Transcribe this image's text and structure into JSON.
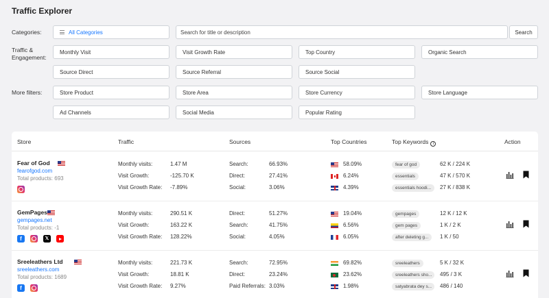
{
  "title": "Traffic Explorer",
  "filters": {
    "categories_label": "Categories:",
    "categories_value": "All Categories",
    "search_placeholder": "Search for title or description",
    "search_button": "Search",
    "traffic_label": "Traffic & Engagement:",
    "traffic": [
      "Monthly Visit",
      "Visit Growth Rate",
      "Top Country",
      "Organic Search",
      "Source Direct",
      "Source Referral",
      "Source Social"
    ],
    "more_label": "More filters:",
    "more": [
      "Store Product",
      "Store Area",
      "Store Currency",
      "Store Language",
      "Ad Channels",
      "Social Media",
      "Popular Rating"
    ]
  },
  "columns": [
    "Store",
    "Traffic",
    "Sources",
    "Top Countries",
    "Top Keywords",
    "Action"
  ],
  "stores": [
    {
      "name": "Fear of God",
      "flag": "us",
      "domain": "fearofgod.com",
      "products": "Total products:  693",
      "social": [
        "instagram"
      ],
      "traffic": [
        [
          "Monthly visits:",
          "1.47 M"
        ],
        [
          "Visit Growth:",
          "-125.70 K"
        ],
        [
          "Visit Growth Rate:",
          "-7.89%"
        ]
      ],
      "sources": [
        [
          "Search:",
          "66.93%"
        ],
        [
          "Direct:",
          "27.41%"
        ],
        [
          "Social:",
          "3.06%"
        ]
      ],
      "countries": [
        [
          "us",
          "58.09%"
        ],
        [
          "ca",
          "6.24%"
        ],
        [
          "gb",
          "4.39%"
        ]
      ],
      "keywords": [
        [
          "fear of god",
          "62 K / 224 K"
        ],
        [
          "essentials",
          "47 K / 570 K"
        ],
        [
          "essentials hoodi...",
          "27 K / 838 K"
        ]
      ]
    },
    {
      "name": "GemPages",
      "flag": "us",
      "domain": "gempages.net",
      "products": "Total products:  -1",
      "social": [
        "facebook",
        "instagram",
        "x",
        "youtube"
      ],
      "traffic": [
        [
          "Monthly visits:",
          "290.51 K"
        ],
        [
          "Visit Growth:",
          "163.22 K"
        ],
        [
          "Visit Growth Rate:",
          "128.22%"
        ]
      ],
      "sources": [
        [
          "Direct:",
          "51.27%"
        ],
        [
          "Search:",
          "41.75%"
        ],
        [
          "Social:",
          "4.05%"
        ]
      ],
      "countries": [
        [
          "us",
          "19.04%"
        ],
        [
          "co",
          "6.56%"
        ],
        [
          "fr",
          "6.05%"
        ]
      ],
      "keywords": [
        [
          "gempages",
          "12 K / 12 K"
        ],
        [
          "gem pages",
          "1 K / 2 K"
        ],
        [
          "after deleting g...",
          "1 K / 50"
        ]
      ]
    },
    {
      "name": "Sreeleathers Ltd",
      "flag": "us",
      "domain": "sreeleathers.com",
      "products": "Total products:  1689",
      "social": [
        "facebook",
        "instagram"
      ],
      "traffic": [
        [
          "Monthly visits:",
          "221.73 K"
        ],
        [
          "Visit Growth:",
          "18.81 K"
        ],
        [
          "Visit Growth Rate:",
          "9.27%"
        ]
      ],
      "sources": [
        [
          "Search:",
          "72.95%"
        ],
        [
          "Direct:",
          "23.24%"
        ],
        [
          "Paid Referrals:",
          "3.03%"
        ]
      ],
      "countries": [
        [
          "in",
          "69.82%"
        ],
        [
          "bd",
          "23.62%"
        ],
        [
          "gb",
          "1.98%"
        ]
      ],
      "keywords": [
        [
          "sreeleathers",
          "5 K / 32 K"
        ],
        [
          "sreeleathers sho...",
          "495 / 3 K"
        ],
        [
          "satyabrata dey s...",
          "486 / 140"
        ]
      ]
    }
  ],
  "icons": {
    "list": "list-icon",
    "info": "info-icon",
    "chart": "bar-chart-icon",
    "bookmark": "bookmark-icon"
  },
  "colors": {
    "link": "#1677ff",
    "background": "#f2f2f4"
  }
}
